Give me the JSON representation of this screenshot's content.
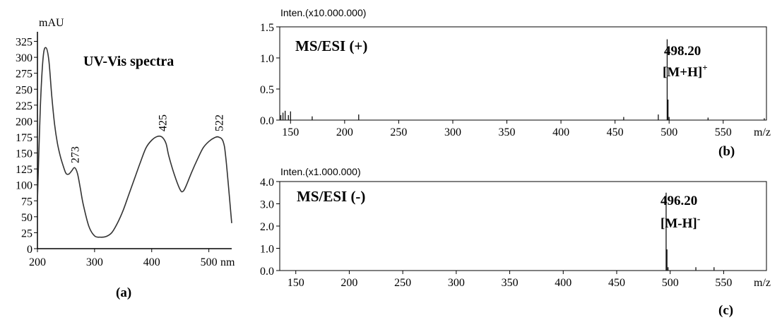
{
  "chart_data": [
    {
      "type": "line",
      "panel_label": "(a)",
      "title": "UV-Vis spectra",
      "ylabel": "mAU",
      "xunit": "nm",
      "xlim": [
        200,
        540
      ],
      "ylim": [
        0,
        340
      ],
      "xticks": [
        "200",
        "300",
        "400",
        "500"
      ],
      "yticks": [
        "0",
        "25",
        "50",
        "75",
        "100",
        "125",
        "150",
        "175",
        "200",
        "225",
        "250",
        "275",
        "300",
        "325"
      ],
      "peak_labels": [
        {
          "text": "273",
          "x": 265,
          "y": 125
        },
        {
          "text": "425",
          "x": 418,
          "y": 175
        },
        {
          "text": "522",
          "x": 517,
          "y": 175
        }
      ],
      "series": [
        {
          "x": [
            200,
            205,
            210,
            215,
            220,
            225,
            230,
            235,
            240,
            245,
            250,
            255,
            260,
            265,
            270,
            275,
            280,
            290,
            300,
            310,
            320,
            330,
            340,
            350,
            360,
            370,
            380,
            390,
            400,
            410,
            418,
            425,
            430,
            440,
            450,
            455,
            460,
            470,
            480,
            490,
            500,
            510,
            517,
            525,
            530,
            540
          ],
          "y": [
            75,
            220,
            300,
            315,
            295,
            240,
            195,
            165,
            145,
            130,
            118,
            117,
            122,
            127,
            118,
            95,
            70,
            35,
            20,
            18,
            19,
            25,
            40,
            60,
            85,
            110,
            135,
            158,
            170,
            176,
            175,
            165,
            145,
            115,
            92,
            90,
            98,
            120,
            140,
            158,
            168,
            174,
            175,
            168,
            140,
            40
          ]
        }
      ]
    },
    {
      "type": "bar",
      "panel_label": "(b)",
      "title": "MS/ESI (+)",
      "ylabel": "Inten.(x10.000.000)",
      "xunit": "m/z",
      "xlim": [
        140,
        590
      ],
      "ylim": [
        0,
        1.5
      ],
      "xticks": [
        "150",
        "200",
        "250",
        "300",
        "350",
        "400",
        "450",
        "500",
        "550",
        "m/z"
      ],
      "yticks": [
        "0.0",
        "0.5",
        "1.0",
        "1.5"
      ],
      "peak_label": "498.20",
      "ion_label": "[M+H]",
      "ion_charge": "+",
      "peaks": [
        {
          "x": 141,
          "y": 0.08
        },
        {
          "x": 143,
          "y": 0.12
        },
        {
          "x": 145,
          "y": 0.15
        },
        {
          "x": 148,
          "y": 0.08
        },
        {
          "x": 150,
          "y": 0.14
        },
        {
          "x": 170,
          "y": 0.06
        },
        {
          "x": 213,
          "y": 0.09
        },
        {
          "x": 458,
          "y": 0.05
        },
        {
          "x": 490,
          "y": 0.09
        },
        {
          "x": 498.2,
          "y": 1.3
        },
        {
          "x": 499,
          "y": 0.33
        },
        {
          "x": 500,
          "y": 0.05
        },
        {
          "x": 536,
          "y": 0.04
        },
        {
          "x": 588,
          "y": 0.03
        }
      ]
    },
    {
      "type": "bar",
      "panel_label": "(c)",
      "title": "MS/ESI (-)",
      "ylabel": "Inten.(x1.000.000)",
      "xunit": "m/z",
      "xlim": [
        135,
        590
      ],
      "ylim": [
        0,
        4.0
      ],
      "xticks": [
        "150",
        "200",
        "250",
        "300",
        "350",
        "400",
        "450",
        "500",
        "550",
        "m/z"
      ],
      "yticks": [
        "0.0",
        "1.0",
        "2.0",
        "3.0",
        "4.0"
      ],
      "peak_label": "496.20",
      "ion_label": "[M-H]",
      "ion_charge": "-",
      "peaks": [
        {
          "x": 496.2,
          "y": 3.5
        },
        {
          "x": 497,
          "y": 0.95
        },
        {
          "x": 498,
          "y": 0.15
        },
        {
          "x": 524,
          "y": 0.15
        },
        {
          "x": 541,
          "y": 0.15
        }
      ]
    }
  ]
}
